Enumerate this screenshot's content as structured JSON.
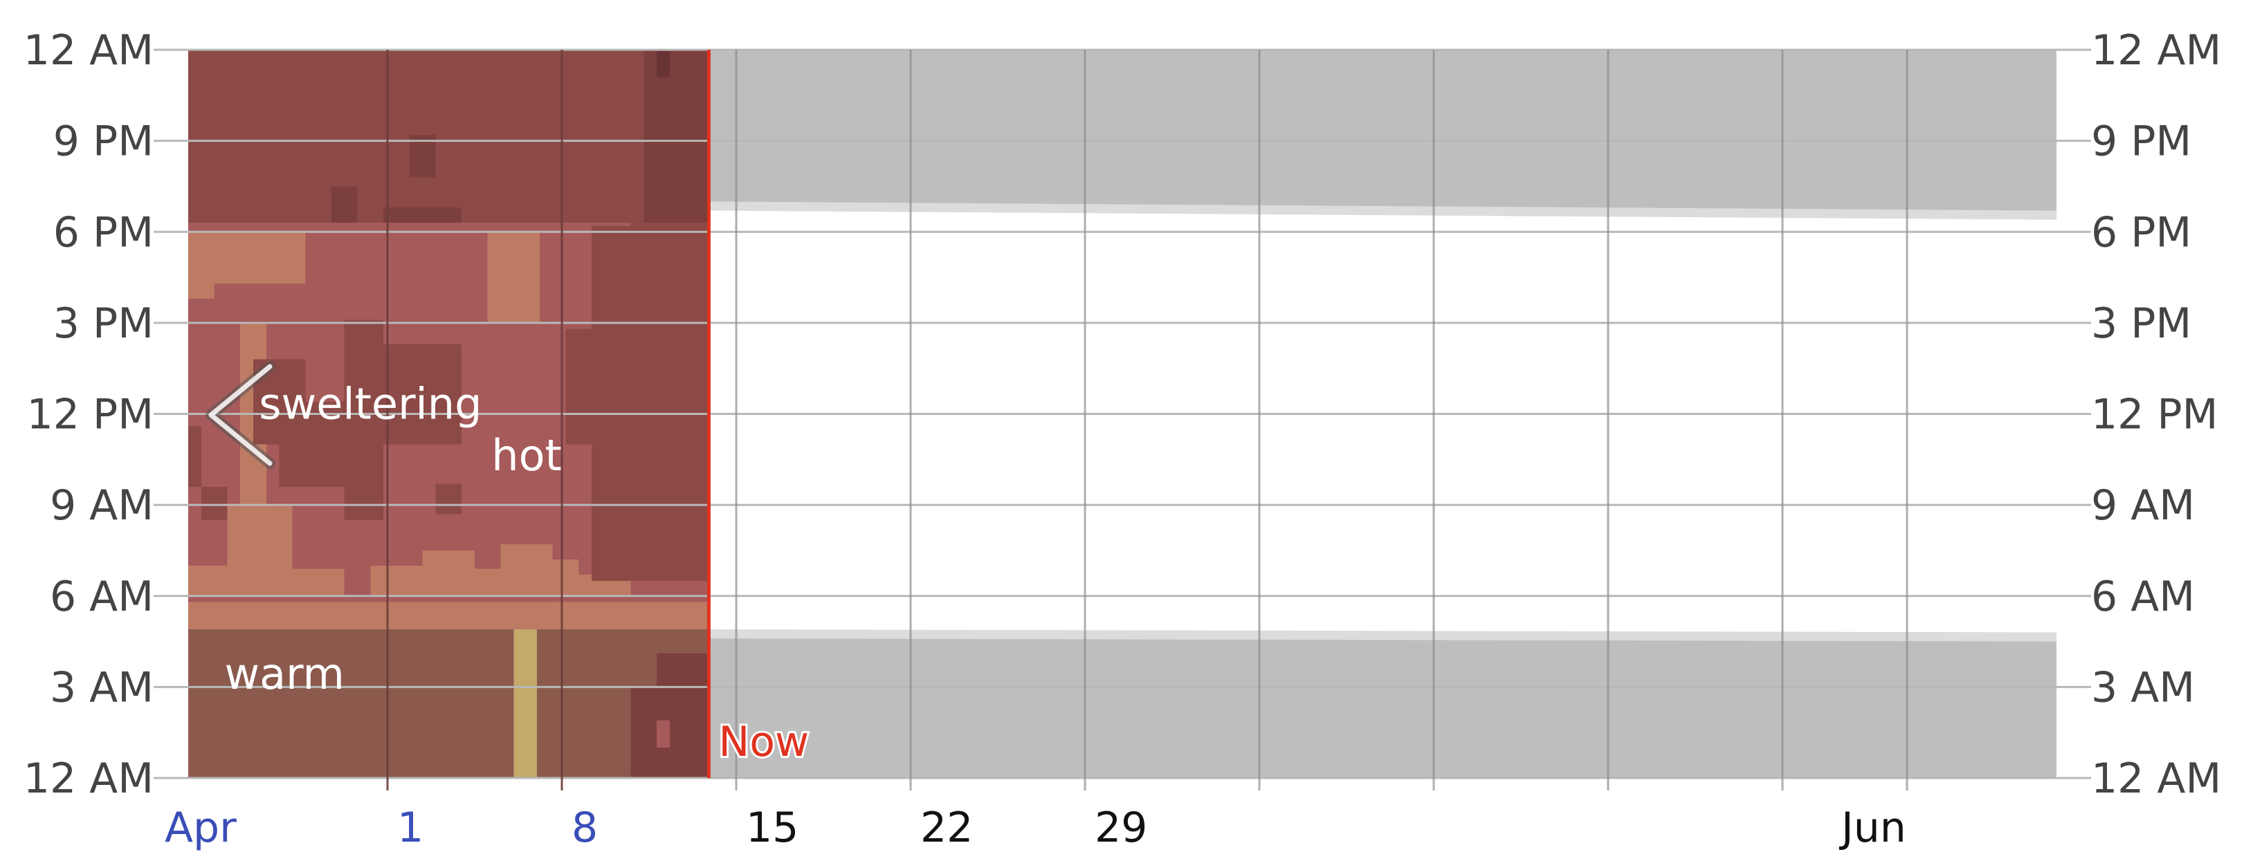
{
  "colors": {
    "sweltering": "#8c4a46",
    "sweltering_dark": "#7b3f3d",
    "sweltering_darkest": "#683335",
    "hot": "#a65a5a",
    "warm": "#be7b64",
    "warm_evening": "#8b5a4d",
    "hot_flag": "#c4a96a",
    "night_future": "#bebebe",
    "twilight_future": "#dcdcdc",
    "now_line": "#e0321e",
    "grid": "#b8b8b8",
    "grid_dark": "#6b3c3a",
    "tick_text": "#444444",
    "past_month_label": "#3a4eb8",
    "future_label": "#111111"
  },
  "nav": {
    "prev_icon": "chevron-left-icon"
  },
  "chart_data": {
    "type": "heatmap",
    "title": "",
    "description_note": "",
    "x_axis": {
      "start": "2024-03-24",
      "end": "2024-06-07",
      "tick_labels": [
        {
          "date": "2024-03-25",
          "label": "Apr",
          "past": true
        },
        {
          "date": "2024-04-01",
          "label": "1",
          "past": true
        },
        {
          "date": "2024-04-08",
          "label": "8",
          "past": true
        },
        {
          "date": "2024-04-15",
          "label": "15",
          "past": false
        },
        {
          "date": "2024-04-22",
          "label": "22",
          "past": false
        },
        {
          "date": "2024-04-29",
          "label": "29",
          "past": false
        },
        {
          "date": "2024-06-01",
          "label": "Jun",
          "past": false
        }
      ],
      "gridlines": [
        "2024-04-01",
        "2024-04-08",
        "2024-04-15",
        "2024-04-22",
        "2024-04-29",
        "2024-05-06",
        "2024-05-13",
        "2024-05-20",
        "2024-05-27",
        "2024-06-01"
      ]
    },
    "y_axis": {
      "ticks": [
        0,
        3,
        6,
        9,
        12,
        15,
        18,
        21,
        24
      ],
      "tick_labels_left": [
        "12 AM",
        "3 AM",
        "6 AM",
        "9 AM",
        "12 PM",
        "3 PM",
        "6 PM",
        "9 PM",
        "12 AM"
      ],
      "tick_labels_right": [
        "12 AM",
        "3 AM",
        "6 AM",
        "9 AM",
        "12 PM",
        "3 PM",
        "6 PM",
        "9 PM",
        "12 AM"
      ]
    },
    "now": {
      "date": "2024-04-13",
      "hour": 19.8,
      "label": "Now"
    },
    "sun": {
      "sunrise_start": 4.9,
      "sunrise_end": 4.5,
      "sunset_start": 18.7,
      "sunset_end": 18.4
    },
    "zone_labels": [
      {
        "text": "sweltering",
        "day": 7,
        "hour": 12.3
      },
      {
        "text": "hot",
        "day": 13,
        "hour": 10.6
      },
      {
        "text": "warm",
        "day": 3.7,
        "hour": 3.4
      }
    ],
    "categories": [
      "warm",
      "hot",
      "sweltering",
      "sweltering_dark",
      "sweltering_darkest",
      "hot_flag"
    ],
    "days": 20,
    "cells": [
      {
        "d0": 0,
        "d1": 20,
        "h0": 0,
        "h1": 4.9,
        "cat": "warm_evening"
      },
      {
        "d0": 0,
        "d1": 18,
        "h0": 18.3,
        "h1": 24,
        "cat": "sweltering"
      },
      {
        "d0": 0,
        "d1": 20,
        "h0": 4.9,
        "h1": 18.3,
        "cat": "hot"
      },
      {
        "d0": 0,
        "d1": 20,
        "h0": 4.9,
        "h1": 5.8,
        "cat": "warm"
      },
      {
        "d0": 0,
        "d1": 2,
        "h0": 6,
        "h1": 7,
        "cat": "warm"
      },
      {
        "d0": 1,
        "d1": 6,
        "h0": 6,
        "h1": 6.9,
        "cat": "warm"
      },
      {
        "d0": 1.5,
        "d1": 4,
        "h0": 6.9,
        "h1": 9,
        "cat": "warm"
      },
      {
        "d0": 2,
        "d1": 3,
        "h0": 9,
        "h1": 15,
        "cat": "warm"
      },
      {
        "d0": 7,
        "d1": 9,
        "h0": 6,
        "h1": 7,
        "cat": "warm"
      },
      {
        "d0": 9,
        "d1": 11,
        "h0": 6,
        "h1": 7.5,
        "cat": "warm"
      },
      {
        "d0": 11,
        "d1": 15,
        "h0": 6,
        "h1": 6.9,
        "cat": "warm"
      },
      {
        "d0": 12,
        "d1": 13,
        "h0": 6,
        "h1": 7.7,
        "cat": "warm"
      },
      {
        "d0": 13,
        "d1": 14,
        "h0": 6,
        "h1": 7.7,
        "cat": "warm"
      },
      {
        "d0": 14,
        "d1": 15,
        "h0": 6,
        "h1": 7.2,
        "cat": "warm"
      },
      {
        "d0": 15,
        "d1": 17,
        "h0": 6,
        "h1": 6.7,
        "cat": "warm"
      },
      {
        "d0": 0,
        "d1": 4.5,
        "h0": 16.3,
        "h1": 18,
        "cat": "warm"
      },
      {
        "d0": 0,
        "d1": 1,
        "h0": 15.8,
        "h1": 18,
        "cat": "warm"
      },
      {
        "d0": 11.5,
        "d1": 13.5,
        "h0": 15,
        "h1": 18,
        "cat": "warm"
      },
      {
        "d0": 2.5,
        "d1": 4.5,
        "h0": 11,
        "h1": 13.8,
        "cat": "sweltering"
      },
      {
        "d0": 3.5,
        "d1": 6,
        "h0": 9.6,
        "h1": 12.4,
        "cat": "sweltering"
      },
      {
        "d0": 6,
        "d1": 7.5,
        "h0": 8.5,
        "h1": 15.1,
        "cat": "sweltering"
      },
      {
        "d0": 7.5,
        "d1": 10.5,
        "h0": 11,
        "h1": 14.3,
        "cat": "sweltering"
      },
      {
        "d0": 9.5,
        "d1": 10.5,
        "h0": 8.7,
        "h1": 9.7,
        "cat": "sweltering"
      },
      {
        "d0": 0,
        "d1": 0.5,
        "h0": 9.6,
        "h1": 11.6,
        "cat": "sweltering"
      },
      {
        "d0": 0.5,
        "d1": 1.5,
        "h0": 8.5,
        "h1": 9.6,
        "cat": "sweltering"
      },
      {
        "d0": 14.5,
        "d1": 17,
        "h0": 11,
        "h1": 14.8,
        "cat": "sweltering"
      },
      {
        "d0": 15.5,
        "d1": 20,
        "h0": 6.5,
        "h1": 18.2,
        "cat": "sweltering"
      },
      {
        "d0": 17,
        "d1": 20,
        "h0": 8,
        "h1": 18.3,
        "cat": "sweltering"
      },
      {
        "d0": 18,
        "d1": 20,
        "h0": 5.8,
        "h1": 6.5,
        "cat": "hot"
      },
      {
        "d0": 17,
        "d1": 20,
        "h0": 0,
        "h1": 3,
        "cat": "sweltering_dark"
      },
      {
        "d0": 18,
        "d1": 20,
        "h0": 0,
        "h1": 4.1,
        "cat": "sweltering_dark"
      },
      {
        "d0": 17.5,
        "d1": 20,
        "h0": 18.3,
        "h1": 24,
        "cat": "sweltering_dark"
      },
      {
        "d0": 8.5,
        "d1": 9.5,
        "h0": 19.8,
        "h1": 21.2,
        "cat": "sweltering_dark"
      },
      {
        "d0": 5.5,
        "d1": 6.5,
        "h0": 18.3,
        "h1": 19.5,
        "cat": "sweltering_dark"
      },
      {
        "d0": 7.5,
        "d1": 10.5,
        "h0": 18.3,
        "h1": 18.8,
        "cat": "sweltering_dark"
      },
      {
        "d0": 18,
        "d1": 18.5,
        "h0": 23.1,
        "h1": 24,
        "cat": "sweltering_darkest"
      },
      {
        "d0": 18,
        "d1": 18.5,
        "h0": 1,
        "h1": 1.9,
        "cat": "hot"
      },
      {
        "d0": 12.5,
        "d1": 13.4,
        "h0": 0,
        "h1": 4.9,
        "cat": "hot_flag"
      }
    ]
  }
}
